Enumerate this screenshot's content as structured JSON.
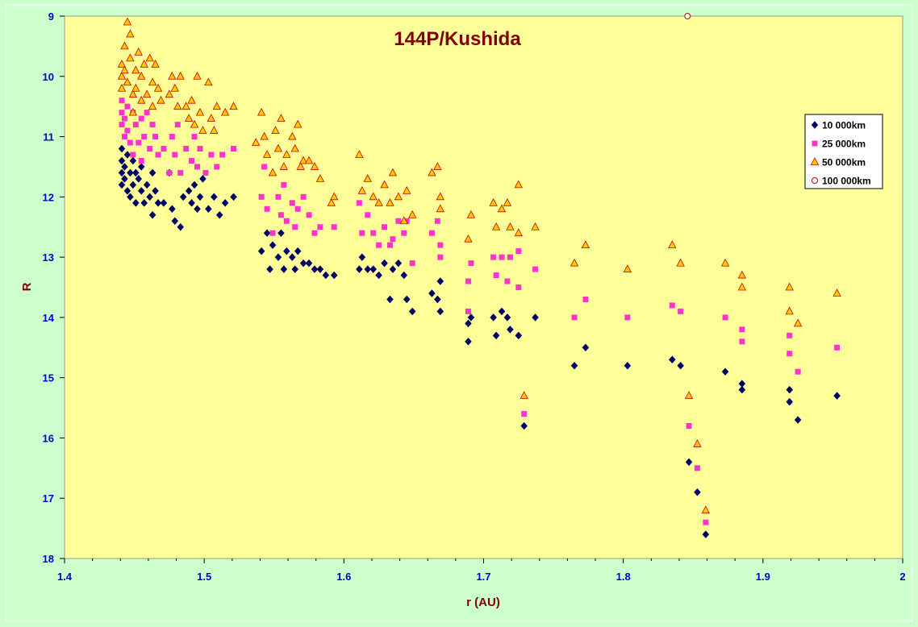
{
  "chart_data": {
    "type": "scatter",
    "title": "144P/Kushida",
    "xlabel": "r (AU)",
    "ylabel": "R",
    "xlim": [
      1.4,
      2.0
    ],
    "ylim": [
      9,
      18
    ],
    "y_inverted": true,
    "x_ticks": [
      "1.4",
      "1.5",
      "1.6",
      "1.7",
      "1.8",
      "1.9",
      "2"
    ],
    "y_ticks": [
      "9",
      "10",
      "11",
      "12",
      "13",
      "14",
      "15",
      "16",
      "17",
      "18"
    ],
    "grid": false,
    "legend_position": "right",
    "colors": {
      "plot_background": "#ffff99",
      "page_background": "#ccffcc",
      "series_10000": "#000066",
      "series_25000": "#ff33cc",
      "series_50000_fill": "#ffcc00",
      "series_50000_edge": "#cc0000",
      "series_100000_fill": "#ffffff",
      "series_100000_edge": "#cc0000"
    },
    "series": [
      {
        "name": "10 000km",
        "marker": "diamond",
        "points": [
          [
            1.441,
            11.2
          ],
          [
            1.441,
            11.4
          ],
          [
            1.441,
            11.6
          ],
          [
            1.441,
            11.8
          ],
          [
            1.443,
            11.5
          ],
          [
            1.443,
            11.7
          ],
          [
            1.445,
            11.3
          ],
          [
            1.445,
            11.9
          ],
          [
            1.447,
            11.6
          ],
          [
            1.447,
            12.0
          ],
          [
            1.449,
            11.4
          ],
          [
            1.449,
            11.8
          ],
          [
            1.451,
            11.6
          ],
          [
            1.451,
            12.1
          ],
          [
            1.453,
            11.7
          ],
          [
            1.455,
            11.5
          ],
          [
            1.455,
            11.9
          ],
          [
            1.457,
            12.1
          ],
          [
            1.459,
            11.8
          ],
          [
            1.461,
            12.0
          ],
          [
            1.463,
            11.6
          ],
          [
            1.463,
            12.3
          ],
          [
            1.465,
            11.9
          ],
          [
            1.467,
            12.1
          ],
          [
            1.471,
            12.1
          ],
          [
            1.475,
            11.6
          ],
          [
            1.477,
            12.2
          ],
          [
            1.479,
            12.4
          ],
          [
            1.483,
            12.5
          ],
          [
            1.485,
            12.0
          ],
          [
            1.489,
            11.9
          ],
          [
            1.491,
            12.1
          ],
          [
            1.493,
            11.8
          ],
          [
            1.495,
            12.2
          ],
          [
            1.497,
            12.0
          ],
          [
            1.499,
            11.7
          ],
          [
            1.503,
            12.2
          ],
          [
            1.507,
            12.0
          ],
          [
            1.511,
            12.3
          ],
          [
            1.515,
            12.1
          ],
          [
            1.521,
            12.0
          ],
          [
            1.541,
            12.9
          ],
          [
            1.545,
            12.6
          ],
          [
            1.547,
            13.2
          ],
          [
            1.549,
            12.8
          ],
          [
            1.553,
            13.0
          ],
          [
            1.555,
            12.6
          ],
          [
            1.557,
            13.2
          ],
          [
            1.559,
            12.9
          ],
          [
            1.563,
            13.0
          ],
          [
            1.565,
            13.2
          ],
          [
            1.567,
            12.9
          ],
          [
            1.571,
            13.1
          ],
          [
            1.575,
            13.1
          ],
          [
            1.579,
            13.2
          ],
          [
            1.583,
            13.2
          ],
          [
            1.587,
            13.3
          ],
          [
            1.593,
            13.3
          ],
          [
            1.611,
            13.2
          ],
          [
            1.613,
            13.0
          ],
          [
            1.617,
            13.2
          ],
          [
            1.621,
            13.2
          ],
          [
            1.625,
            13.3
          ],
          [
            1.629,
            13.1
          ],
          [
            1.633,
            13.7
          ],
          [
            1.635,
            13.2
          ],
          [
            1.639,
            13.1
          ],
          [
            1.643,
            13.3
          ],
          [
            1.645,
            13.7
          ],
          [
            1.649,
            13.9
          ],
          [
            1.663,
            13.6
          ],
          [
            1.667,
            13.7
          ],
          [
            1.669,
            13.4
          ],
          [
            1.669,
            13.9
          ],
          [
            1.689,
            14.4
          ],
          [
            1.689,
            14.1
          ],
          [
            1.691,
            14.0
          ],
          [
            1.707,
            14.0
          ],
          [
            1.709,
            14.3
          ],
          [
            1.713,
            13.9
          ],
          [
            1.717,
            14.0
          ],
          [
            1.719,
            14.2
          ],
          [
            1.725,
            14.3
          ],
          [
            1.729,
            15.8
          ],
          [
            1.737,
            14.0
          ],
          [
            1.765,
            14.8
          ],
          [
            1.773,
            14.5
          ],
          [
            1.803,
            14.8
          ],
          [
            1.835,
            14.7
          ],
          [
            1.841,
            14.8
          ],
          [
            1.847,
            16.4
          ],
          [
            1.853,
            16.9
          ],
          [
            1.859,
            17.6
          ],
          [
            1.873,
            14.9
          ],
          [
            1.885,
            15.1
          ],
          [
            1.885,
            15.2
          ],
          [
            1.919,
            15.2
          ],
          [
            1.919,
            15.4
          ],
          [
            1.925,
            15.7
          ],
          [
            1.953,
            15.3
          ]
        ]
      },
      {
        "name": "25 000km",
        "marker": "square",
        "points": [
          [
            1.441,
            10.4
          ],
          [
            1.441,
            10.6
          ],
          [
            1.441,
            10.8
          ],
          [
            1.443,
            10.7
          ],
          [
            1.443,
            11.0
          ],
          [
            1.445,
            10.5
          ],
          [
            1.445,
            10.9
          ],
          [
            1.447,
            11.1
          ],
          [
            1.449,
            10.6
          ],
          [
            1.449,
            11.3
          ],
          [
            1.451,
            10.8
          ],
          [
            1.453,
            11.1
          ],
          [
            1.455,
            10.7
          ],
          [
            1.455,
            11.4
          ],
          [
            1.457,
            11.0
          ],
          [
            1.459,
            10.6
          ],
          [
            1.461,
            11.2
          ],
          [
            1.463,
            10.8
          ],
          [
            1.465,
            11.0
          ],
          [
            1.467,
            11.3
          ],
          [
            1.471,
            11.2
          ],
          [
            1.475,
            11.6
          ],
          [
            1.477,
            11.0
          ],
          [
            1.479,
            11.3
          ],
          [
            1.481,
            10.8
          ],
          [
            1.483,
            11.6
          ],
          [
            1.487,
            11.2
          ],
          [
            1.491,
            11.4
          ],
          [
            1.493,
            11.0
          ],
          [
            1.495,
            11.5
          ],
          [
            1.497,
            11.2
          ],
          [
            1.501,
            11.6
          ],
          [
            1.505,
            11.3
          ],
          [
            1.509,
            11.5
          ],
          [
            1.513,
            11.3
          ],
          [
            1.521,
            11.2
          ],
          [
            1.541,
            12.0
          ],
          [
            1.543,
            11.5
          ],
          [
            1.545,
            12.2
          ],
          [
            1.549,
            12.6
          ],
          [
            1.553,
            12.0
          ],
          [
            1.555,
            12.3
          ],
          [
            1.557,
            11.8
          ],
          [
            1.559,
            12.4
          ],
          [
            1.563,
            12.1
          ],
          [
            1.565,
            12.5
          ],
          [
            1.567,
            12.2
          ],
          [
            1.571,
            12.0
          ],
          [
            1.575,
            12.3
          ],
          [
            1.579,
            12.6
          ],
          [
            1.583,
            12.5
          ],
          [
            1.593,
            12.5
          ],
          [
            1.611,
            12.1
          ],
          [
            1.613,
            12.6
          ],
          [
            1.617,
            12.3
          ],
          [
            1.621,
            12.6
          ],
          [
            1.625,
            12.8
          ],
          [
            1.629,
            12.5
          ],
          [
            1.633,
            12.8
          ],
          [
            1.635,
            12.7
          ],
          [
            1.639,
            12.4
          ],
          [
            1.643,
            12.6
          ],
          [
            1.645,
            12.4
          ],
          [
            1.649,
            13.1
          ],
          [
            1.663,
            12.6
          ],
          [
            1.667,
            12.4
          ],
          [
            1.669,
            13.0
          ],
          [
            1.669,
            12.8
          ],
          [
            1.689,
            13.4
          ],
          [
            1.689,
            13.9
          ],
          [
            1.691,
            13.1
          ],
          [
            1.707,
            13.0
          ],
          [
            1.709,
            13.3
          ],
          [
            1.713,
            13.0
          ],
          [
            1.717,
            13.4
          ],
          [
            1.719,
            13.0
          ],
          [
            1.725,
            12.9
          ],
          [
            1.725,
            13.5
          ],
          [
            1.729,
            15.6
          ],
          [
            1.737,
            13.2
          ],
          [
            1.765,
            14.0
          ],
          [
            1.773,
            13.7
          ],
          [
            1.803,
            14.0
          ],
          [
            1.835,
            13.8
          ],
          [
            1.841,
            13.9
          ],
          [
            1.847,
            15.8
          ],
          [
            1.853,
            16.5
          ],
          [
            1.859,
            17.4
          ],
          [
            1.873,
            14.0
          ],
          [
            1.885,
            14.2
          ],
          [
            1.885,
            14.4
          ],
          [
            1.919,
            14.3
          ],
          [
            1.919,
            14.6
          ],
          [
            1.925,
            14.9
          ],
          [
            1.953,
            14.5
          ]
        ]
      },
      {
        "name": "50 000km",
        "marker": "triangle",
        "points": [
          [
            1.441,
            9.8
          ],
          [
            1.441,
            10.0
          ],
          [
            1.441,
            10.2
          ],
          [
            1.443,
            9.5
          ],
          [
            1.443,
            9.9
          ],
          [
            1.445,
            9.1
          ],
          [
            1.445,
            10.1
          ],
          [
            1.447,
            9.3
          ],
          [
            1.447,
            9.7
          ],
          [
            1.449,
            10.3
          ],
          [
            1.449,
            10.6
          ],
          [
            1.451,
            9.9
          ],
          [
            1.451,
            10.2
          ],
          [
            1.453,
            9.6
          ],
          [
            1.455,
            10.4
          ],
          [
            1.455,
            10.0
          ],
          [
            1.457,
            9.8
          ],
          [
            1.459,
            10.3
          ],
          [
            1.461,
            9.7
          ],
          [
            1.463,
            10.1
          ],
          [
            1.463,
            10.5
          ],
          [
            1.465,
            9.8
          ],
          [
            1.467,
            10.2
          ],
          [
            1.469,
            10.4
          ],
          [
            1.475,
            10.3
          ],
          [
            1.477,
            10.0
          ],
          [
            1.479,
            10.2
          ],
          [
            1.481,
            10.5
          ],
          [
            1.483,
            10.0
          ],
          [
            1.487,
            10.5
          ],
          [
            1.489,
            10.7
          ],
          [
            1.491,
            10.4
          ],
          [
            1.493,
            10.8
          ],
          [
            1.495,
            10.0
          ],
          [
            1.497,
            10.6
          ],
          [
            1.499,
            10.9
          ],
          [
            1.503,
            10.1
          ],
          [
            1.505,
            10.7
          ],
          [
            1.507,
            10.9
          ],
          [
            1.509,
            10.5
          ],
          [
            1.515,
            10.6
          ],
          [
            1.521,
            10.5
          ],
          [
            1.537,
            11.1
          ],
          [
            1.541,
            10.6
          ],
          [
            1.543,
            11.0
          ],
          [
            1.545,
            11.3
          ],
          [
            1.549,
            11.6
          ],
          [
            1.551,
            10.9
          ],
          [
            1.553,
            11.2
          ],
          [
            1.555,
            10.7
          ],
          [
            1.557,
            11.5
          ],
          [
            1.559,
            11.3
          ],
          [
            1.563,
            11.0
          ],
          [
            1.565,
            11.2
          ],
          [
            1.567,
            10.8
          ],
          [
            1.569,
            11.5
          ],
          [
            1.571,
            11.4
          ],
          [
            1.575,
            11.4
          ],
          [
            1.579,
            11.5
          ],
          [
            1.583,
            11.7
          ],
          [
            1.591,
            12.1
          ],
          [
            1.593,
            12.0
          ],
          [
            1.611,
            11.3
          ],
          [
            1.613,
            11.9
          ],
          [
            1.617,
            11.7
          ],
          [
            1.621,
            12.0
          ],
          [
            1.625,
            12.1
          ],
          [
            1.629,
            11.8
          ],
          [
            1.633,
            12.1
          ],
          [
            1.635,
            11.6
          ],
          [
            1.639,
            12.0
          ],
          [
            1.643,
            12.4
          ],
          [
            1.645,
            11.9
          ],
          [
            1.649,
            12.3
          ],
          [
            1.663,
            11.6
          ],
          [
            1.667,
            11.5
          ],
          [
            1.669,
            12.0
          ],
          [
            1.669,
            12.2
          ],
          [
            1.689,
            12.7
          ],
          [
            1.691,
            12.3
          ],
          [
            1.707,
            12.1
          ],
          [
            1.709,
            12.5
          ],
          [
            1.713,
            12.2
          ],
          [
            1.717,
            12.1
          ],
          [
            1.719,
            12.5
          ],
          [
            1.725,
            11.8
          ],
          [
            1.725,
            12.6
          ],
          [
            1.729,
            15.3
          ],
          [
            1.737,
            12.5
          ],
          [
            1.765,
            13.1
          ],
          [
            1.773,
            12.8
          ],
          [
            1.803,
            13.2
          ],
          [
            1.835,
            12.8
          ],
          [
            1.841,
            13.1
          ],
          [
            1.847,
            15.3
          ],
          [
            1.853,
            16.1
          ],
          [
            1.859,
            17.2
          ],
          [
            1.873,
            13.1
          ],
          [
            1.885,
            13.3
          ],
          [
            1.885,
            13.5
          ],
          [
            1.919,
            13.5
          ],
          [
            1.919,
            13.9
          ],
          [
            1.925,
            14.1
          ],
          [
            1.953,
            13.6
          ]
        ]
      },
      {
        "name": "100 000km",
        "marker": "circle",
        "points": [
          [
            1.846,
            9.0
          ]
        ]
      }
    ]
  }
}
